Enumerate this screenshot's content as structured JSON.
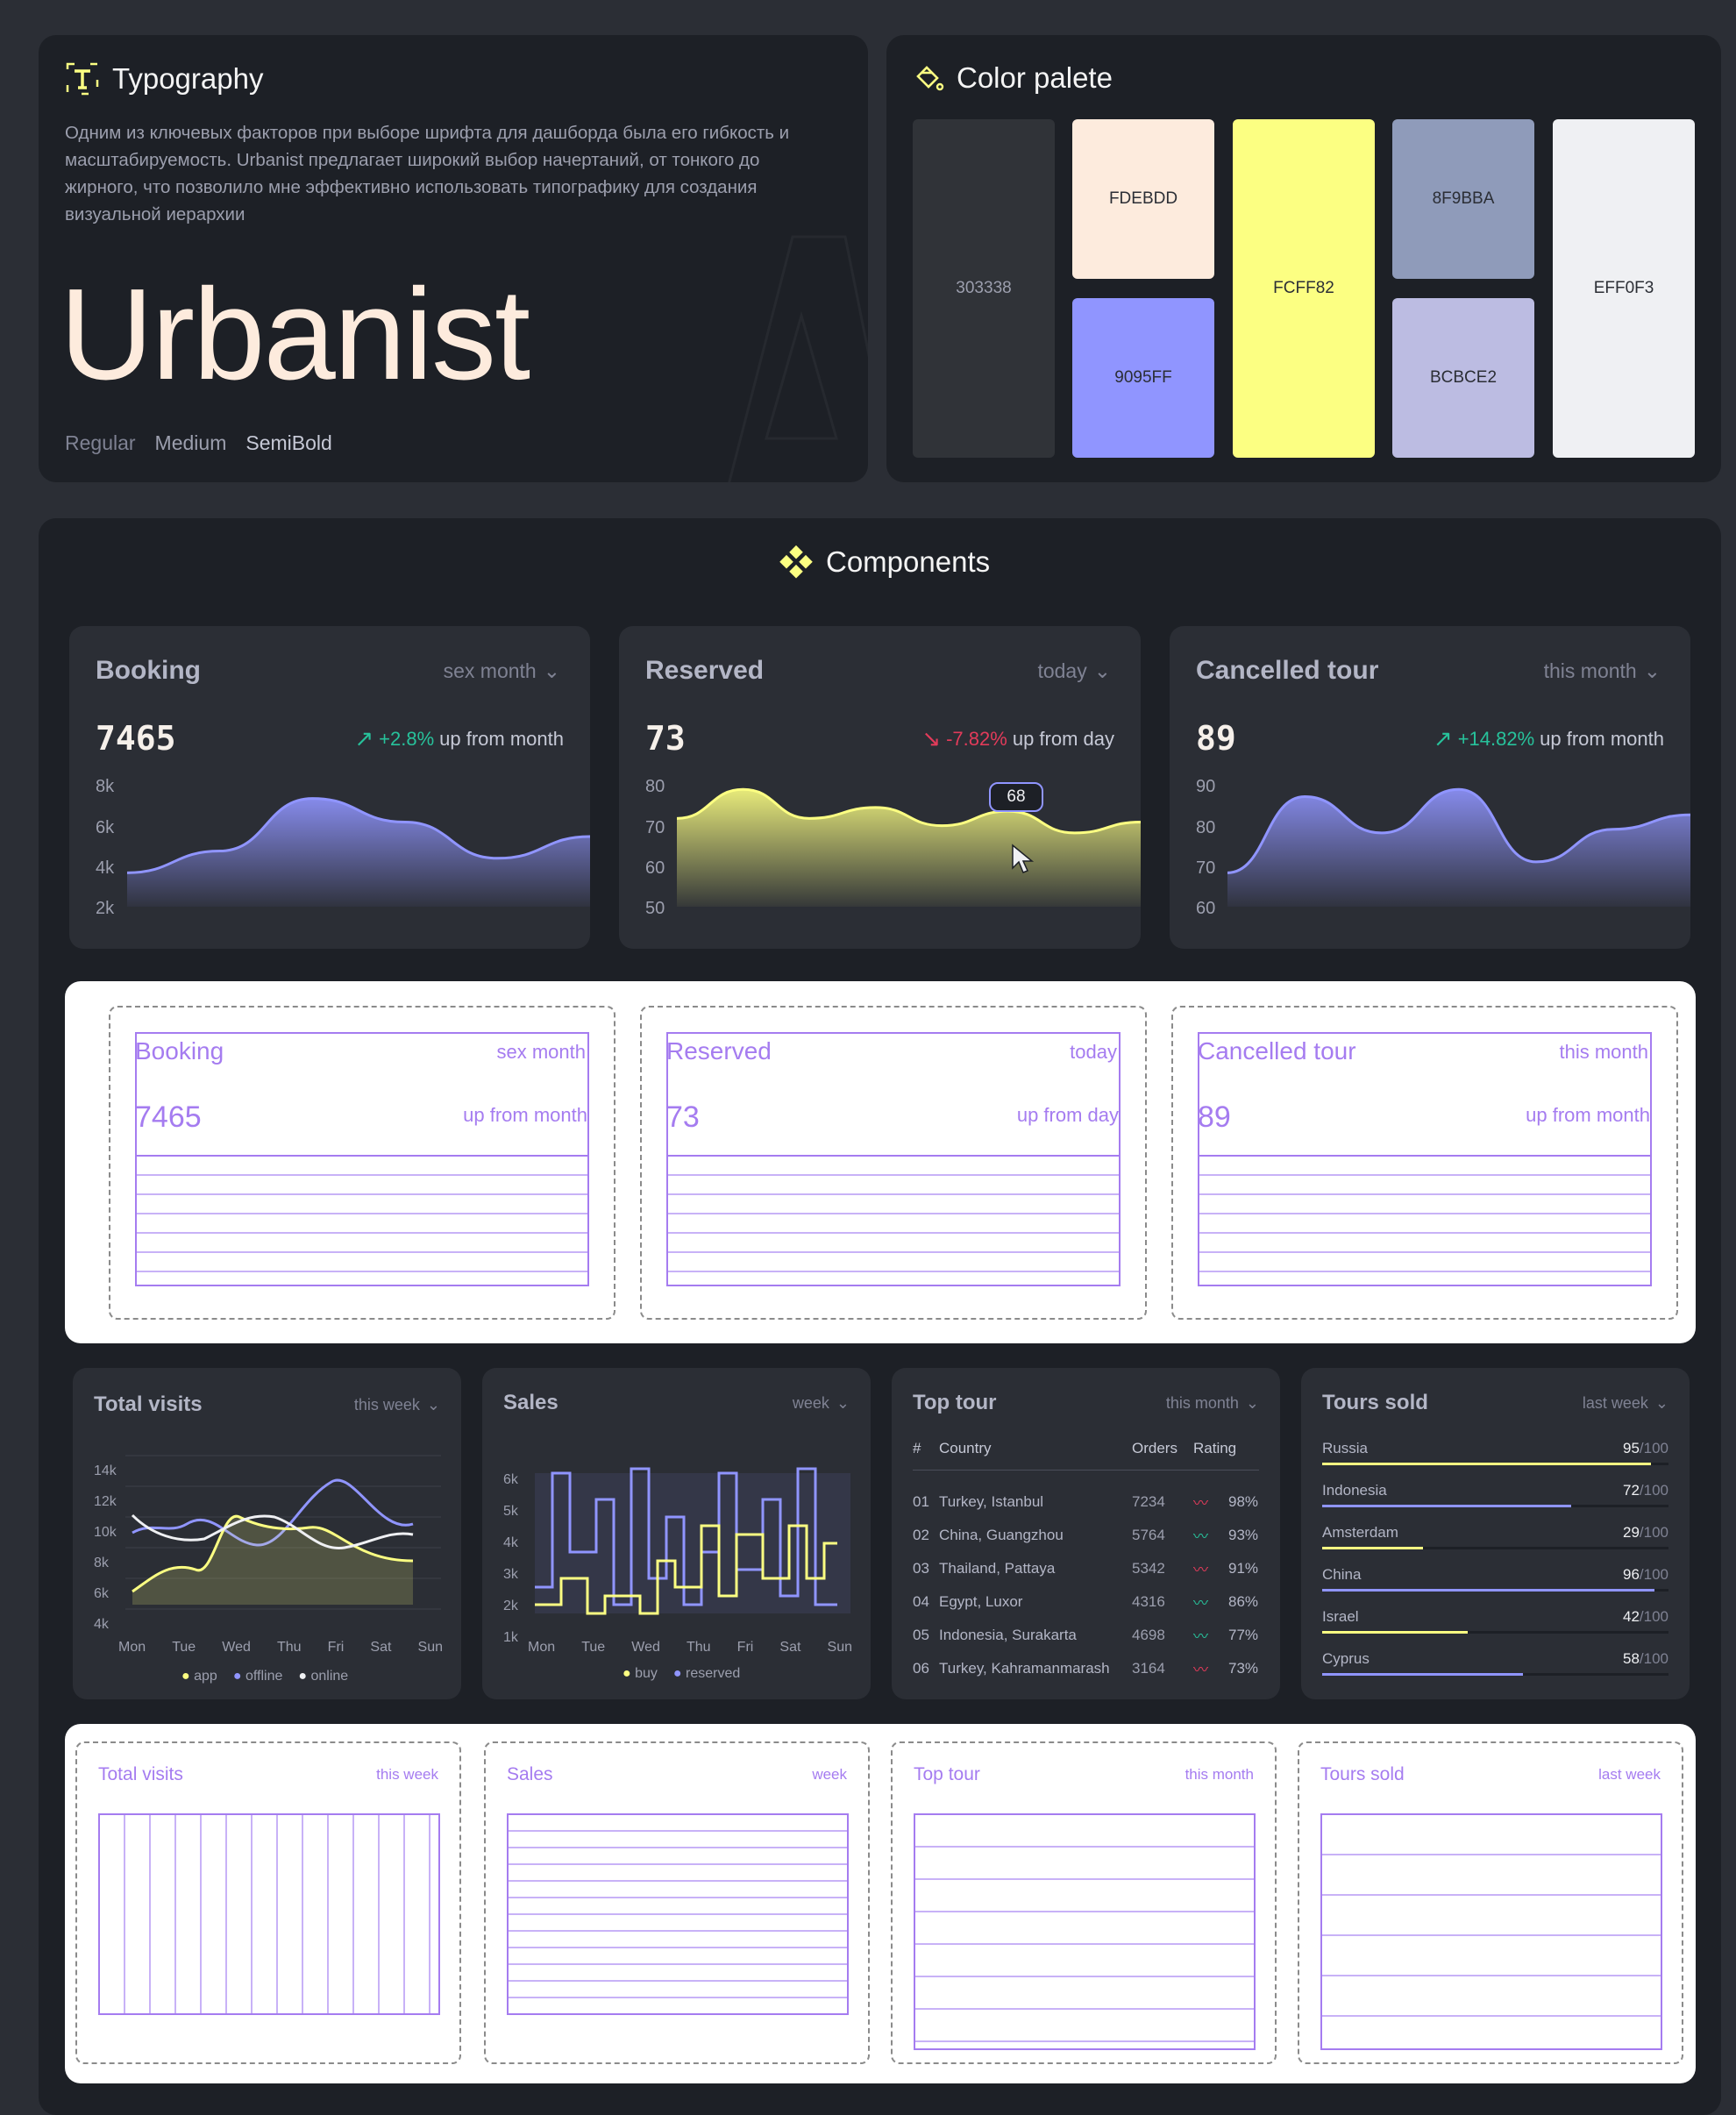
{
  "typography": {
    "title": "Typography",
    "icon": "typography-icon",
    "description": "Одним из ключевых факторов при выборе шрифта для дашборда была его гибкость и масштабируемость. Urbanist предлагает широкий выбор начертаний, от тонкого до жирного, что позволило мне эффективно использовать типографику для создания визуальной иерархии",
    "font_name": "Urbanist",
    "weights": [
      "Regular",
      "Medium",
      "SemiBold"
    ]
  },
  "palette": {
    "title": "Color palete",
    "icon": "paint-bucket-icon",
    "colors": [
      "303338",
      "FDEBDD",
      "9095FF",
      "FCFF82",
      "8F9BBA",
      "BCBCE2",
      "EFF0F3"
    ]
  },
  "components": {
    "title": "Components",
    "icon": "components-icon",
    "kpi_cards": [
      {
        "title": "Booking",
        "period": "sex month",
        "value": "7465",
        "change": "+2.8%",
        "direction": "up",
        "suffix": "up from month",
        "yticks": [
          "8k",
          "6k",
          "4k",
          "2k"
        ]
      },
      {
        "title": "Reserved",
        "period": "today",
        "value": "73",
        "change": "-7.82%",
        "direction": "down",
        "suffix": "up from day",
        "yticks": [
          "80",
          "70",
          "60",
          "50"
        ],
        "tooltip": "68"
      },
      {
        "title": "Cancelled tour",
        "period": "this month",
        "value": "89",
        "change": "+14.82%",
        "direction": "up",
        "suffix": "up from month",
        "yticks": [
          "90",
          "80",
          "70",
          "60"
        ]
      }
    ],
    "total_visits": {
      "title": "Total visits",
      "period": "this week",
      "yticks": [
        "14k",
        "12k",
        "10k",
        "8k",
        "6k",
        "4k"
      ],
      "days": [
        "Mon",
        "Tue",
        "Wed",
        "Thu",
        "Fri",
        "Sat",
        "Sun"
      ],
      "legend": [
        "app",
        "offline",
        "online"
      ]
    },
    "sales": {
      "title": "Sales",
      "period": "week",
      "yticks": [
        "6k",
        "5k",
        "4k",
        "3k",
        "2k",
        "1k"
      ],
      "days": [
        "Mon",
        "Tue",
        "Wed",
        "Thu",
        "Fri",
        "Sat",
        "Sun"
      ],
      "legend": [
        "buy",
        "reserved"
      ]
    },
    "top_tour": {
      "title": "Top tour",
      "period": "this month",
      "headers": [
        "#",
        "Country",
        "Orders",
        "Rating"
      ],
      "rows": [
        {
          "n": "01",
          "country": "Turkey, Istanbul",
          "orders": "7234",
          "rating": "98%",
          "trend": "down"
        },
        {
          "n": "02",
          "country": "China, Guangzhou",
          "orders": "5764",
          "rating": "93%",
          "trend": "up"
        },
        {
          "n": "03",
          "country": "Thailand, Pattaya",
          "orders": "5342",
          "rating": "91%",
          "trend": "down"
        },
        {
          "n": "04",
          "country": "Egypt, Luxor",
          "orders": "4316",
          "rating": "86%",
          "trend": "up"
        },
        {
          "n": "05",
          "country": "Indonesia, Surakarta",
          "orders": "4698",
          "rating": "77%",
          "trend": "up"
        },
        {
          "n": "06",
          "country": "Turkey, Kahramanmarash",
          "orders": "3164",
          "rating": "73%",
          "trend": "down"
        }
      ]
    },
    "tours_sold": {
      "title": "Tours sold",
      "period": "last week",
      "max": "/100",
      "rows": [
        {
          "country": "Russia",
          "value": "95",
          "color": "#FCFF82"
        },
        {
          "country": "Indonesia",
          "value": "72",
          "color": "#9095FF"
        },
        {
          "country": "Amsterdam",
          "value": "29",
          "color": "#FCFF82"
        },
        {
          "country": "China",
          "value": "96",
          "color": "#9095FF"
        },
        {
          "country": "Israel",
          "value": "42",
          "color": "#FCFF82"
        },
        {
          "country": "Cyprus",
          "value": "58",
          "color": "#9095FF"
        }
      ]
    }
  },
  "chart_data": [
    {
      "type": "area",
      "title": "Booking",
      "yticks": [
        "8k",
        "6k",
        "4k",
        "2k"
      ],
      "ylim": [
        2000,
        8000
      ],
      "x": [
        0,
        1,
        2,
        3,
        4,
        5
      ],
      "values": [
        3000,
        4200,
        7100,
        5800,
        3800,
        5000
      ]
    },
    {
      "type": "area",
      "title": "Reserved",
      "yticks": [
        "80",
        "70",
        "60",
        "50"
      ],
      "ylim": [
        50,
        80
      ],
      "x": [
        0,
        1,
        2,
        3,
        4,
        5,
        6,
        7
      ],
      "values": [
        70,
        78,
        70,
        73,
        68,
        72,
        66,
        69
      ]
    },
    {
      "type": "area",
      "title": "Cancelled tour",
      "yticks": [
        "90",
        "80",
        "70",
        "60"
      ],
      "ylim": [
        60,
        90
      ],
      "x": [
        0,
        1,
        2,
        3,
        4,
        5,
        6
      ],
      "values": [
        65,
        86,
        76,
        88,
        68,
        77,
        81
      ]
    }
  ]
}
